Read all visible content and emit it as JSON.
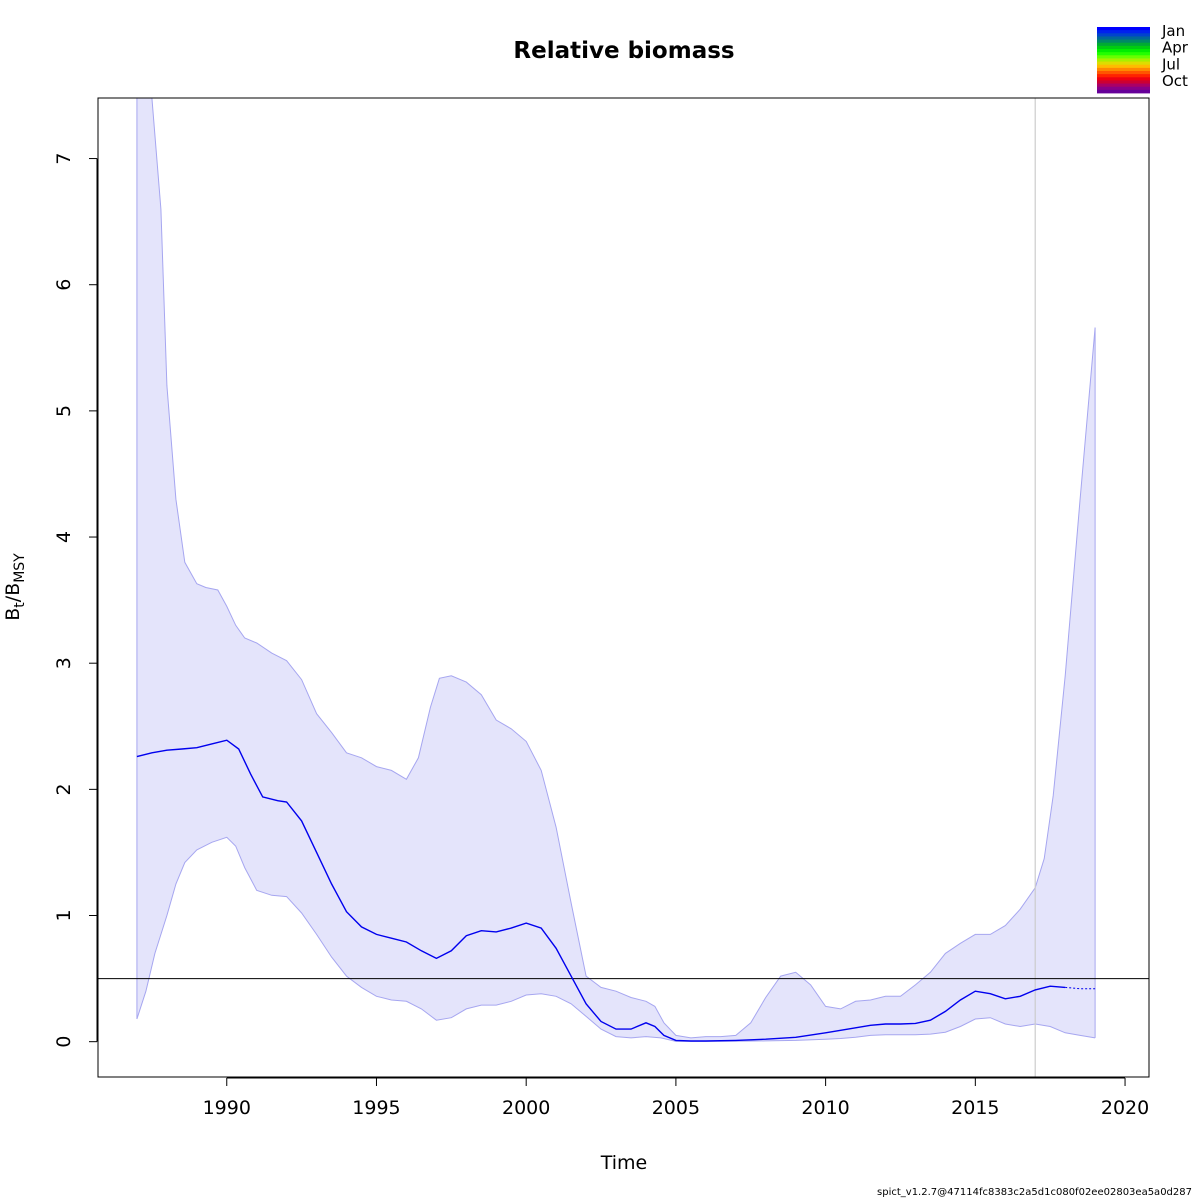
{
  "chart_data": {
    "type": "line",
    "title": "Relative biomass",
    "xlabel": "Time",
    "ylabel_main": "B",
    "ylabel_sub1": "t",
    "ylabel_sep": "/B",
    "ylabel_sub2": "MSY",
    "xlim": [
      1985.7,
      2020.8
    ],
    "ylim": [
      -0.28,
      7.48
    ],
    "x_ticks": [
      1990,
      1995,
      2000,
      2005,
      2010,
      2015,
      2020
    ],
    "y_ticks": [
      0,
      1,
      2,
      3,
      4,
      5,
      6,
      7
    ],
    "hline_y": 0.5,
    "vline_x": 2017.0,
    "colors": {
      "band_fill": "#e4e4fb",
      "band_edge": "#a6a6f0",
      "line": "#0000ee",
      "reference": "#000000",
      "vline": "#cccccc"
    },
    "series": [
      {
        "role": "estimate",
        "x": [
          1987.0,
          1987.5,
          1988.0,
          1988.5,
          1989.0,
          1989.5,
          1990.0,
          1990.4,
          1990.8,
          1991.2,
          1991.7,
          1992.0,
          1992.5,
          1993.0,
          1993.5,
          1994.0,
          1994.5,
          1995.0,
          1995.5,
          1996.0,
          1996.5,
          1997.0,
          1997.5,
          1998.0,
          1998.5,
          1999.0,
          1999.5,
          2000.0,
          2000.5,
          2001.0,
          2001.5,
          2002.0,
          2002.5,
          2003.0,
          2003.5,
          2004.0,
          2004.3,
          2004.6,
          2005.0,
          2005.5,
          2006.0,
          2007.0,
          2008.0,
          2009.0,
          2010.0,
          2011.0,
          2011.5,
          2012.0,
          2012.5,
          2013.0,
          2013.5,
          2014.0,
          2014.5,
          2015.0,
          2015.5,
          2016.0,
          2016.5,
          2017.0,
          2017.5,
          2018.0
        ],
        "y": [
          2.26,
          2.29,
          2.31,
          2.32,
          2.33,
          2.36,
          2.39,
          2.32,
          2.12,
          1.94,
          1.91,
          1.9,
          1.75,
          1.5,
          1.25,
          1.03,
          0.91,
          0.85,
          0.82,
          0.79,
          0.72,
          0.66,
          0.72,
          0.84,
          0.88,
          0.87,
          0.9,
          0.94,
          0.9,
          0.74,
          0.52,
          0.3,
          0.16,
          0.1,
          0.1,
          0.15,
          0.12,
          0.05,
          0.01,
          0.005,
          0.005,
          0.01,
          0.02,
          0.035,
          0.07,
          0.11,
          0.13,
          0.14,
          0.14,
          0.145,
          0.17,
          0.24,
          0.33,
          0.4,
          0.38,
          0.34,
          0.36,
          0.41,
          0.44,
          0.43
        ]
      },
      {
        "role": "forecast",
        "x": [
          2018.0,
          2018.5,
          2019.0
        ],
        "y": [
          0.43,
          0.42,
          0.42
        ]
      },
      {
        "role": "upper",
        "x": [
          1987.0,
          1987.5,
          1987.8,
          1988.0,
          1988.3,
          1988.6,
          1989.0,
          1989.3,
          1989.7,
          1990.0,
          1990.3,
          1990.6,
          1991.0,
          1991.5,
          1992.0,
          1992.5,
          1993.0,
          1993.5,
          1994.0,
          1994.5,
          1995.0,
          1995.5,
          1996.0,
          1996.4,
          1996.8,
          1997.1,
          1997.5,
          1998.0,
          1998.5,
          1999.0,
          1999.5,
          2000.0,
          2000.5,
          2001.0,
          2001.5,
          2002.0,
          2002.5,
          2003.0,
          2003.5,
          2004.0,
          2004.3,
          2004.6,
          2005.0,
          2005.5,
          2006.0,
          2006.5,
          2007.0,
          2007.5,
          2008.0,
          2008.5,
          2009.0,
          2009.5,
          2010.0,
          2010.5,
          2011.0,
          2011.5,
          2012.0,
          2012.5,
          2013.0,
          2013.5,
          2014.0,
          2014.5,
          2015.0,
          2015.5,
          2016.0,
          2016.5,
          2017.0,
          2017.3,
          2017.6,
          2018.0,
          2018.5,
          2019.0
        ],
        "y": [
          7.48,
          7.48,
          6.6,
          5.2,
          4.3,
          3.8,
          3.63,
          3.6,
          3.58,
          3.45,
          3.3,
          3.2,
          3.16,
          3.08,
          3.02,
          2.87,
          2.6,
          2.45,
          2.29,
          2.25,
          2.18,
          2.15,
          2.08,
          2.25,
          2.65,
          2.88,
          2.9,
          2.85,
          2.75,
          2.55,
          2.48,
          2.38,
          2.15,
          1.7,
          1.1,
          0.52,
          0.43,
          0.4,
          0.35,
          0.32,
          0.28,
          0.15,
          0.05,
          0.03,
          0.04,
          0.04,
          0.05,
          0.15,
          0.35,
          0.52,
          0.55,
          0.45,
          0.28,
          0.26,
          0.32,
          0.33,
          0.36,
          0.36,
          0.45,
          0.55,
          0.7,
          0.78,
          0.85,
          0.85,
          0.92,
          1.05,
          1.22,
          1.45,
          1.95,
          2.9,
          4.3,
          5.66
        ]
      },
      {
        "role": "lower",
        "x": [
          1987.0,
          1987.3,
          1987.6,
          1988.0,
          1988.3,
          1988.6,
          1989.0,
          1989.5,
          1990.0,
          1990.3,
          1990.6,
          1991.0,
          1991.5,
          1992.0,
          1992.5,
          1993.0,
          1993.5,
          1994.0,
          1994.5,
          1995.0,
          1995.5,
          1996.0,
          1996.5,
          1997.0,
          1997.5,
          1998.0,
          1998.5,
          1999.0,
          1999.5,
          2000.0,
          2000.5,
          2001.0,
          2001.5,
          2002.0,
          2002.5,
          2003.0,
          2003.5,
          2004.0,
          2004.5,
          2005.0,
          2006.0,
          2007.0,
          2008.0,
          2009.0,
          2010.0,
          2010.5,
          2011.0,
          2011.5,
          2012.0,
          2012.5,
          2013.0,
          2013.5,
          2014.0,
          2014.5,
          2015.0,
          2015.5,
          2016.0,
          2016.5,
          2017.0,
          2017.5,
          2018.0,
          2018.5,
          2019.0
        ],
        "y": [
          0.18,
          0.4,
          0.7,
          1.0,
          1.25,
          1.42,
          1.52,
          1.58,
          1.62,
          1.55,
          1.38,
          1.2,
          1.16,
          1.15,
          1.02,
          0.85,
          0.67,
          0.52,
          0.43,
          0.36,
          0.33,
          0.32,
          0.26,
          0.17,
          0.19,
          0.26,
          0.29,
          0.29,
          0.32,
          0.37,
          0.38,
          0.36,
          0.3,
          0.2,
          0.1,
          0.04,
          0.03,
          0.04,
          0.03,
          0.002,
          0.002,
          0.003,
          0.006,
          0.01,
          0.02,
          0.025,
          0.035,
          0.05,
          0.055,
          0.055,
          0.055,
          0.06,
          0.075,
          0.12,
          0.18,
          0.19,
          0.14,
          0.12,
          0.14,
          0.12,
          0.07,
          0.05,
          0.03
        ]
      }
    ],
    "legend": {
      "position": "top-right",
      "labels": [
        "Jan",
        "Apr",
        "Jul",
        "Oct"
      ],
      "swatches": [
        "#0000ff",
        "#0022ee",
        "#0044cc",
        "#006699",
        "#008866",
        "#00aa33",
        "#00cc11",
        "#00ee00",
        "#22ff00",
        "#66ff00",
        "#aaee00",
        "#dddd00",
        "#ffbb00",
        "#ff8800",
        "#ff5500",
        "#ff2200",
        "#ee0011",
        "#cc0033",
        "#aa0066",
        "#880088",
        "#660099"
      ]
    },
    "footer": "spict_v1.2.7@47114fc8383c2a5d1c080f02ee02803ea5a0d287"
  }
}
